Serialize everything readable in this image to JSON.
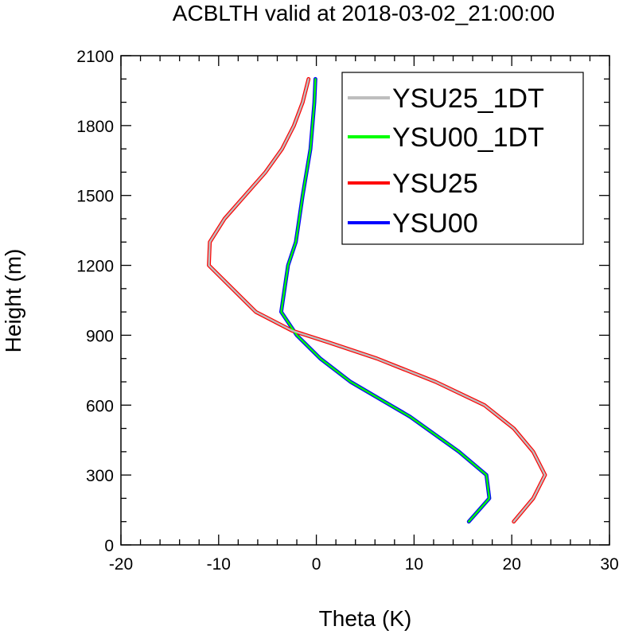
{
  "chart_data": {
    "type": "line",
    "title": "ACBLTH valid at 2018-03-02_21:00:00",
    "xlabel": "Theta (K)",
    "ylabel": "Height (m)",
    "xlim": [
      -20,
      30
    ],
    "ylim": [
      0,
      2100
    ],
    "xticks": [
      -20,
      -10,
      0,
      10,
      20,
      30
    ],
    "yticks": [
      0,
      300,
      600,
      900,
      1200,
      1500,
      1800,
      2100
    ],
    "x_minor_step": 2,
    "y_minor_step": 100,
    "grid": false,
    "legend_position": "top-right",
    "series": [
      {
        "name": "YSU25_1DT",
        "color": "#bebebe",
        "points": [
          [
            20.2,
            100
          ],
          [
            22.2,
            200
          ],
          [
            23.4,
            300
          ],
          [
            22.2,
            400
          ],
          [
            20.2,
            500
          ],
          [
            17.2,
            600
          ],
          [
            12.2,
            700
          ],
          [
            6.2,
            800
          ],
          [
            1.2,
            870
          ],
          [
            -2.5,
            920
          ],
          [
            -6.2,
            1000
          ],
          [
            -11.0,
            1200
          ],
          [
            -10.9,
            1300
          ],
          [
            -9.4,
            1400
          ],
          [
            -5.2,
            1600
          ],
          [
            -3.5,
            1700
          ],
          [
            -2.3,
            1800
          ],
          [
            -1.4,
            1900
          ],
          [
            -0.8,
            2000
          ]
        ]
      },
      {
        "name": "YSU00_1DT",
        "color": "#00ff00",
        "points": [
          [
            15.6,
            100
          ],
          [
            17.7,
            200
          ],
          [
            17.4,
            300
          ],
          [
            14.6,
            400
          ],
          [
            9.6,
            550
          ],
          [
            3.5,
            700
          ],
          [
            0.4,
            800
          ],
          [
            -2.0,
            900
          ],
          [
            -3.6,
            1000
          ],
          [
            -2.9,
            1200
          ],
          [
            -2.1,
            1300
          ],
          [
            -1.4,
            1500
          ],
          [
            -0.6,
            1700
          ],
          [
            -0.2,
            1900
          ],
          [
            -0.1,
            2000
          ]
        ]
      },
      {
        "name": "YSU25",
        "color": "#ff0000",
        "points": [
          [
            20.2,
            100
          ],
          [
            22.2,
            200
          ],
          [
            23.4,
            300
          ],
          [
            22.2,
            400
          ],
          [
            20.2,
            500
          ],
          [
            17.2,
            600
          ],
          [
            12.2,
            700
          ],
          [
            6.2,
            800
          ],
          [
            1.2,
            870
          ],
          [
            -2.5,
            920
          ],
          [
            -6.2,
            1000
          ],
          [
            -11.0,
            1200
          ],
          [
            -10.9,
            1300
          ],
          [
            -9.4,
            1400
          ],
          [
            -5.2,
            1600
          ],
          [
            -3.5,
            1700
          ],
          [
            -2.3,
            1800
          ],
          [
            -1.4,
            1900
          ],
          [
            -0.8,
            2000
          ]
        ]
      },
      {
        "name": "YSU00",
        "color": "#0000ff",
        "points": [
          [
            15.6,
            100
          ],
          [
            17.7,
            200
          ],
          [
            17.4,
            300
          ],
          [
            14.6,
            400
          ],
          [
            9.6,
            550
          ],
          [
            3.5,
            700
          ],
          [
            0.4,
            800
          ],
          [
            -2.0,
            900
          ],
          [
            -3.6,
            1000
          ],
          [
            -2.9,
            1200
          ],
          [
            -2.1,
            1300
          ],
          [
            -1.4,
            1500
          ],
          [
            -0.6,
            1700
          ],
          [
            -0.2,
            1900
          ],
          [
            -0.1,
            2000
          ]
        ]
      }
    ]
  }
}
